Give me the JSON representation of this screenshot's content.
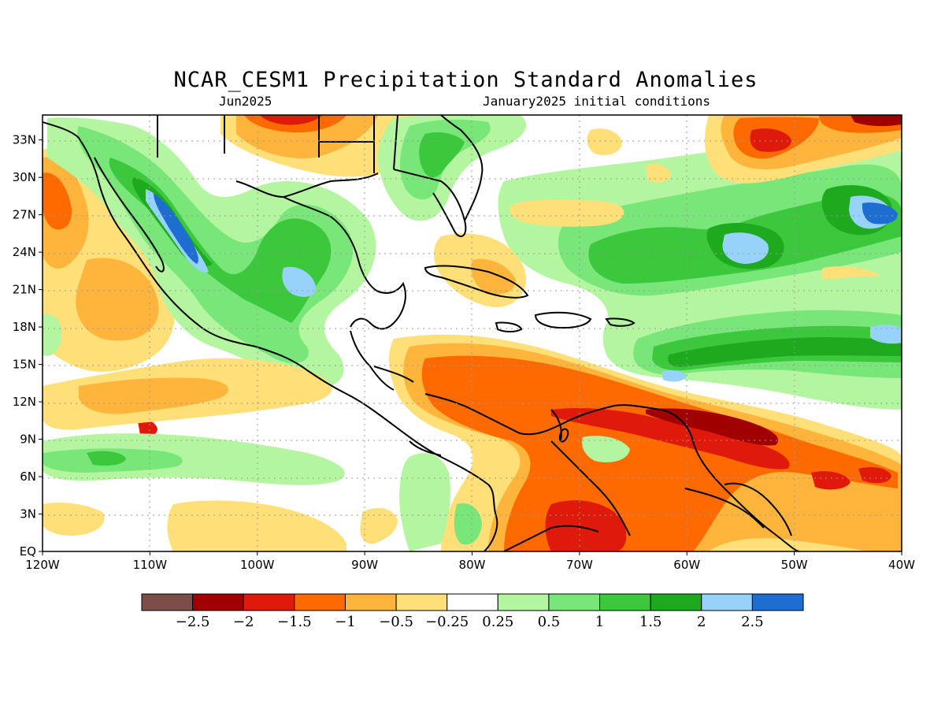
{
  "title": "NCAR_CESM1 Precipitation Standard Anomalies",
  "subtitle_left": "Jun2025",
  "subtitle_right": "January2025 initial conditions",
  "map": {
    "lat_labels": [
      "EQ",
      "3N",
      "6N",
      "9N",
      "12N",
      "15N",
      "18N",
      "21N",
      "24N",
      "27N",
      "30N",
      "33N"
    ],
    "lon_labels": [
      "120W",
      "110W",
      "100W",
      "90W",
      "80W",
      "70W",
      "60W",
      "50W",
      "40W"
    ],
    "lon_range": [
      -120,
      -40
    ],
    "lat_range": [
      0,
      35
    ]
  },
  "colorbar": {
    "colors": [
      "#7b4f47",
      "#a00000",
      "#e01a0a",
      "#ff6a00",
      "#ffb43c",
      "#ffe078",
      "#ffffff",
      "#b4f5a0",
      "#78e678",
      "#3cc83c",
      "#1eaa1e",
      "#96d2fa",
      "#1e6ed2"
    ],
    "labels": [
      "−2.5",
      "−2",
      "−1.5",
      "−1",
      "−0.5",
      "−0.25",
      "0.25",
      "0.5",
      "1",
      "1.5",
      "2",
      "2.5"
    ]
  }
}
